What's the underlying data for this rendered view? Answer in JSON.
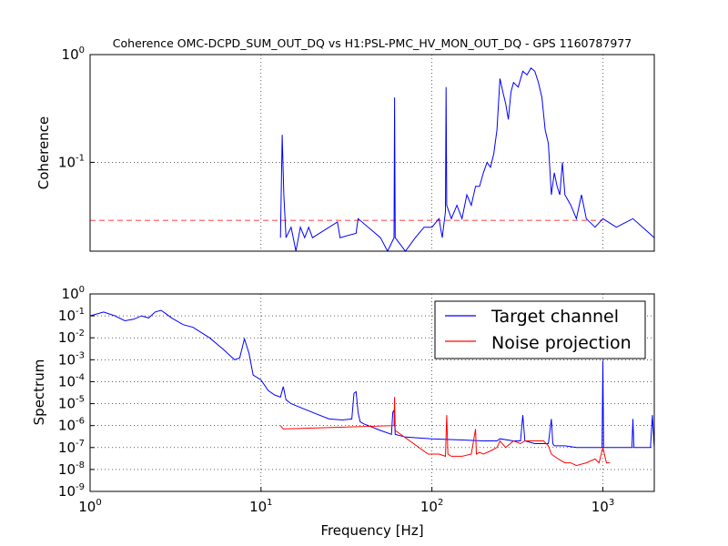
{
  "figure": {
    "title": "Coherence OMC-DCPD_SUM_OUT_DQ vs H1:PSL-PMC_HV_MON_OUT_DQ - GPS 1160787977"
  },
  "colors": {
    "target": "#0000ff",
    "noise": "#ff0000",
    "threshold": "#ff0000",
    "grid": "#000000"
  },
  "chart_data": [
    {
      "id": "coherence",
      "type": "line",
      "title": "Coherence OMC-DCPD_SUM_OUT_DQ vs H1:PSL-PMC_HV_MON_OUT_DQ - GPS 1160787977",
      "xlabel": "",
      "ylabel": "Coherence",
      "xscale": "log",
      "yscale": "log",
      "xlim": [
        1,
        2000
      ],
      "ylim": [
        0.015,
        1
      ],
      "yticks": [
        {
          "value": 1,
          "base": "10",
          "exp": "0"
        },
        {
          "value": 0.1,
          "base": "10",
          "exp": "-1"
        }
      ],
      "xgrid": [
        1,
        10,
        100,
        1000
      ],
      "grid": true,
      "threshold": {
        "y": 0.029,
        "xmax": 1000,
        "style": "dashed"
      },
      "series": [
        {
          "name": "",
          "x": [
            13,
            13.3,
            13.6,
            14,
            15,
            16,
            17,
            18,
            19,
            20,
            28,
            29,
            36,
            37,
            50,
            55,
            60,
            60.5,
            61,
            70,
            80,
            90,
            100,
            110,
            115,
            120,
            121,
            122,
            130,
            140,
            150,
            160,
            170,
            180,
            190,
            200,
            210,
            220,
            230,
            240,
            250,
            260,
            270,
            280,
            290,
            300,
            320,
            340,
            360,
            380,
            400,
            420,
            440,
            460,
            480,
            500,
            520,
            540,
            560,
            580,
            600,
            650,
            700,
            750,
            800,
            900,
            1000,
            1200,
            1500,
            2000
          ],
          "y": [
            0.02,
            0.18,
            0.05,
            0.02,
            0.025,
            0.015,
            0.025,
            0.02,
            0.025,
            0.02,
            0.028,
            0.02,
            0.022,
            0.03,
            0.02,
            0.015,
            0.02,
            0.4,
            0.02,
            0.015,
            0.02,
            0.025,
            0.025,
            0.03,
            0.02,
            0.035,
            0.5,
            0.04,
            0.03,
            0.04,
            0.03,
            0.05,
            0.04,
            0.06,
            0.06,
            0.08,
            0.1,
            0.09,
            0.12,
            0.2,
            0.6,
            0.45,
            0.35,
            0.25,
            0.45,
            0.55,
            0.5,
            0.7,
            0.65,
            0.75,
            0.7,
            0.55,
            0.4,
            0.2,
            0.15,
            0.05,
            0.08,
            0.06,
            0.05,
            0.1,
            0.05,
            0.04,
            0.03,
            0.05,
            0.03,
            0.025,
            0.03,
            0.025,
            0.03,
            0.02
          ]
        }
      ]
    },
    {
      "id": "spectrum",
      "type": "line",
      "title": "",
      "xlabel": "Frequency [Hz]",
      "ylabel": "Spectrum",
      "xscale": "log",
      "yscale": "log",
      "xlim": [
        1,
        2000
      ],
      "ylim": [
        1e-09,
        1
      ],
      "xticks": [
        {
          "value": 1,
          "base": "10",
          "exp": "0"
        },
        {
          "value": 10,
          "base": "10",
          "exp": "1"
        },
        {
          "value": 100,
          "base": "10",
          "exp": "2"
        },
        {
          "value": 1000,
          "base": "10",
          "exp": "3"
        }
      ],
      "yticks": [
        {
          "value": 1,
          "base": "10",
          "exp": "0"
        },
        {
          "value": 0.1,
          "base": "10",
          "exp": "-1"
        },
        {
          "value": 0.01,
          "base": "10",
          "exp": "-2"
        },
        {
          "value": 0.001,
          "base": "10",
          "exp": "-3"
        },
        {
          "value": 0.0001,
          "base": "10",
          "exp": "-4"
        },
        {
          "value": 1e-05,
          "base": "10",
          "exp": "-5"
        },
        {
          "value": 1e-06,
          "base": "10",
          "exp": "-6"
        },
        {
          "value": 1e-07,
          "base": "10",
          "exp": "-7"
        },
        {
          "value": 1e-08,
          "base": "10",
          "exp": "-8"
        },
        {
          "value": 1e-09,
          "base": "10",
          "exp": "-9"
        }
      ],
      "grid": true,
      "legend": {
        "position": "top-right"
      },
      "series": [
        {
          "name": "Target channel",
          "x": [
            1,
            1.2,
            1.4,
            1.6,
            1.8,
            2,
            2.2,
            2.4,
            2.6,
            2.8,
            3,
            3.5,
            4,
            5,
            6,
            7,
            7.5,
            8,
            8.5,
            9,
            10,
            11,
            12,
            13,
            13.5,
            14,
            15,
            20,
            25,
            30,
            34,
            35,
            36,
            37,
            38,
            40,
            50,
            58,
            59,
            60,
            61,
            70,
            100,
            150,
            200,
            240,
            250,
            300,
            330,
            340,
            350,
            400,
            480,
            500,
            510,
            520,
            600,
            700,
            800,
            900,
            990,
            1000,
            1010,
            1100,
            1400,
            1480,
            1500,
            1520,
            1700,
            1900,
            1950,
            2000
          ],
          "y": [
            0.1,
            0.15,
            0.1,
            0.06,
            0.07,
            0.1,
            0.08,
            0.15,
            0.18,
            0.12,
            0.08,
            0.04,
            0.03,
            0.01,
            0.003,
            0.001,
            0.0012,
            0.009,
            0.002,
            0.0002,
            0.00012,
            4e-05,
            2.5e-05,
            2e-05,
            6e-05,
            1.5e-05,
            1e-05,
            4e-06,
            2e-06,
            1.8e-06,
            2e-06,
            3e-05,
            3.5e-05,
            4e-06,
            1.5e-06,
            1.2e-06,
            6e-07,
            4e-07,
            4e-06,
            5e-06,
            4e-07,
            3e-07,
            2.5e-07,
            2.2e-07,
            2e-07,
            2e-07,
            2.5e-07,
            2e-07,
            2e-07,
            3e-06,
            2e-07,
            1.5e-07,
            1.5e-07,
            2e-06,
            1.5e-07,
            1.2e-07,
            1.2e-07,
            1e-07,
            1e-07,
            1e-07,
            1e-07,
            0.0009,
            1e-07,
            1e-07,
            1e-07,
            1e-07,
            2e-06,
            1e-07,
            1e-07,
            1e-07,
            3e-06,
            1e-07
          ]
        },
        {
          "name": "Noise projection",
          "x": [
            13,
            13.5,
            60,
            60.5,
            61,
            95,
            110,
            120,
            122,
            124,
            130,
            150,
            170,
            180,
            182,
            190,
            200,
            220,
            240,
            250,
            270,
            300,
            330,
            350,
            400,
            450,
            480,
            500,
            520,
            550,
            600,
            650,
            700,
            800,
            900,
            950,
            1000,
            1050,
            1100
          ],
          "y": [
            1e-06,
            7e-07,
            1e-06,
            2e-05,
            6e-07,
            5e-08,
            5e-08,
            4e-08,
            3e-06,
            5e-08,
            4e-08,
            4e-08,
            5e-08,
            7e-07,
            5e-08,
            6e-08,
            5e-08,
            7e-08,
            1e-07,
            2e-07,
            1e-07,
            2e-07,
            1.5e-07,
            2e-07,
            2e-07,
            2e-07,
            1.2e-07,
            5e-08,
            4e-08,
            3e-08,
            2e-08,
            2e-08,
            1.5e-08,
            2e-08,
            3e-08,
            2e-08,
            1e-07,
            2e-08,
            2e-08
          ]
        }
      ]
    }
  ]
}
